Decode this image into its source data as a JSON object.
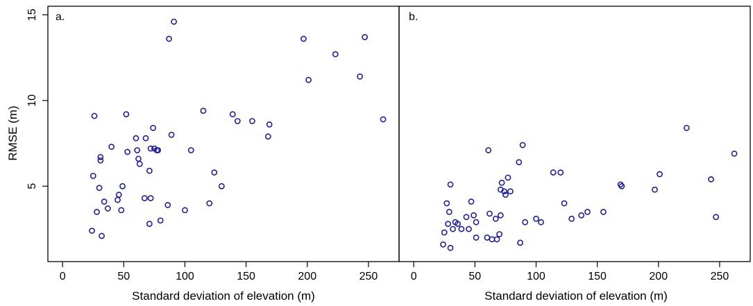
{
  "chart_data": {
    "type": "scatter",
    "ylabel": "RMSE (m)",
    "ylim": [
      0.6,
      15.5
    ],
    "yticks": [
      5,
      10,
      15
    ],
    "xticks": [
      0,
      50,
      100,
      150,
      200,
      250
    ],
    "marker_color": "#1f1f9a",
    "panels": [
      {
        "label": "a.",
        "xlabel": "Standard deviation of elevation (m)",
        "xlim": [
          -12,
          275
        ],
        "points": [
          [
            24,
            2.4
          ],
          [
            25,
            5.6
          ],
          [
            26,
            9.1
          ],
          [
            28,
            3.5
          ],
          [
            30,
            4.9
          ],
          [
            31,
            6.5
          ],
          [
            31,
            6.7
          ],
          [
            32,
            2.1
          ],
          [
            34,
            4.1
          ],
          [
            37,
            3.7
          ],
          [
            40,
            7.3
          ],
          [
            45,
            4.2
          ],
          [
            46,
            4.5
          ],
          [
            48,
            3.6
          ],
          [
            49,
            5.0
          ],
          [
            52,
            9.2
          ],
          [
            53,
            7.0
          ],
          [
            60,
            7.8
          ],
          [
            61,
            7.1
          ],
          [
            62,
            6.6
          ],
          [
            63,
            6.3
          ],
          [
            67,
            4.3
          ],
          [
            68,
            7.8
          ],
          [
            71,
            2.8
          ],
          [
            71,
            5.9
          ],
          [
            72,
            4.3
          ],
          [
            72,
            7.2
          ],
          [
            74,
            8.4
          ],
          [
            75,
            7.2
          ],
          [
            77,
            7.1
          ],
          [
            78,
            7.1
          ],
          [
            80,
            3.0
          ],
          [
            86,
            3.9
          ],
          [
            87,
            13.6
          ],
          [
            89,
            8.0
          ],
          [
            91,
            14.6
          ],
          [
            100,
            3.6
          ],
          [
            105,
            7.1
          ],
          [
            115,
            9.4
          ],
          [
            120,
            4.0
          ],
          [
            124,
            5.8
          ],
          [
            130,
            5.0
          ],
          [
            139,
            9.2
          ],
          [
            143,
            8.8
          ],
          [
            155,
            8.8
          ],
          [
            168,
            7.9
          ],
          [
            169,
            8.6
          ],
          [
            197,
            13.6
          ],
          [
            201,
            11.2
          ],
          [
            223,
            12.7
          ],
          [
            243,
            11.4
          ],
          [
            247,
            13.7
          ],
          [
            262,
            8.9
          ]
        ]
      },
      {
        "label": "b.",
        "xlabel": "Standard deviation of elevation (m)",
        "xlim": [
          -12,
          275
        ],
        "points": [
          [
            24,
            1.6
          ],
          [
            25,
            2.3
          ],
          [
            27,
            4.0
          ],
          [
            28,
            2.8
          ],
          [
            29,
            3.5
          ],
          [
            30,
            5.1
          ],
          [
            30,
            1.4
          ],
          [
            32,
            2.5
          ],
          [
            34,
            2.9
          ],
          [
            36,
            2.8
          ],
          [
            39,
            2.5
          ],
          [
            43,
            3.2
          ],
          [
            45,
            2.5
          ],
          [
            47,
            4.1
          ],
          [
            49,
            3.3
          ],
          [
            51,
            2.9
          ],
          [
            51,
            2.0
          ],
          [
            60,
            2.0
          ],
          [
            61,
            7.1
          ],
          [
            62,
            3.4
          ],
          [
            64,
            1.9
          ],
          [
            67,
            3.1
          ],
          [
            68,
            1.9
          ],
          [
            70,
            2.2
          ],
          [
            71,
            4.8
          ],
          [
            71,
            3.3
          ],
          [
            72,
            5.2
          ],
          [
            74,
            4.7
          ],
          [
            75,
            4.5
          ],
          [
            77,
            5.5
          ],
          [
            79,
            4.7
          ],
          [
            86,
            6.4
          ],
          [
            87,
            1.7
          ],
          [
            89,
            7.4
          ],
          [
            91,
            2.9
          ],
          [
            100,
            3.1
          ],
          [
            104,
            2.9
          ],
          [
            114,
            5.8
          ],
          [
            120,
            5.8
          ],
          [
            123,
            4.0
          ],
          [
            129,
            3.1
          ],
          [
            137,
            3.3
          ],
          [
            142,
            3.5
          ],
          [
            155,
            3.5
          ],
          [
            169,
            5.1
          ],
          [
            170,
            5.0
          ],
          [
            197,
            4.8
          ],
          [
            201,
            5.7
          ],
          [
            223,
            8.4
          ],
          [
            243,
            5.4
          ],
          [
            247,
            3.2
          ],
          [
            262,
            6.9
          ]
        ]
      }
    ]
  }
}
